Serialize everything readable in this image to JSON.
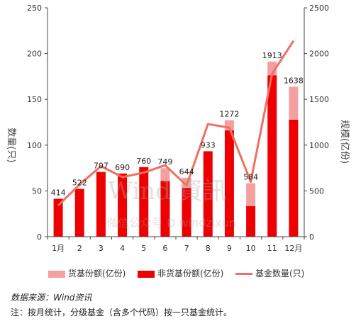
{
  "chart_data": {
    "type": "bar",
    "categories": [
      "1月",
      "2月",
      "3月",
      "4月",
      "5月",
      "6月",
      "7月",
      "8月",
      "9月",
      "10月",
      "11月",
      "12月"
    ],
    "x_tick_labels": [
      "1月",
      "2",
      "3",
      "4",
      "5",
      "6",
      "7",
      "8",
      "9",
      "10",
      "11",
      "12月"
    ],
    "series": [
      {
        "name": "货基份额(亿份)",
        "values": [
          0,
          0,
          0,
          0,
          0,
          140,
          110,
          0,
          110,
          250,
          150,
          360
        ],
        "color": "#f4a0a0"
      },
      {
        "name": "非货基份额(亿份)",
        "values": [
          414,
          522,
          707,
          690,
          760,
          609,
          534,
          933,
          1162,
          334,
          1763,
          1278
        ],
        "color": "#ee0000"
      },
      {
        "name": "基金数量(只)",
        "type": "line",
        "values": [
          34,
          57,
          77,
          65,
          70,
          78,
          56,
          123,
          119,
          60,
          178,
          214
        ],
        "color": "#ef7060"
      }
    ],
    "totals": [
      414,
      522,
      707,
      690,
      760,
      749,
      644,
      933,
      1272,
      584,
      1913,
      1638
    ],
    "data_labels": [
      "414",
      "522",
      "707",
      "690",
      "760",
      "749",
      "644",
      "933",
      "1272",
      "584",
      "1913",
      "1638"
    ],
    "ylabel_left": "数量(只)",
    "ylabel_right": "规模(亿份)",
    "ylim_left": [
      0,
      250
    ],
    "yticks_left": [
      "0",
      "50",
      "100",
      "150",
      "200",
      "250"
    ],
    "ylim_right": [
      0,
      2500
    ],
    "yticks_right": [
      "0",
      "500",
      "1000",
      "1500",
      "2000",
      "2500"
    ],
    "legend_position": "bottom",
    "grid": false
  },
  "legend": {
    "items": [
      "货基份额(亿份)",
      "非货基份额(亿份)",
      "基金数量(只)"
    ]
  },
  "source": "数据来源：Wind资讯",
  "note": "注：按月统计，分级基金（含多个代码）按一只基金统计。",
  "watermark": {
    "main": "Wind 資訊",
    "sub": "微信公众号 D windzixun"
  }
}
